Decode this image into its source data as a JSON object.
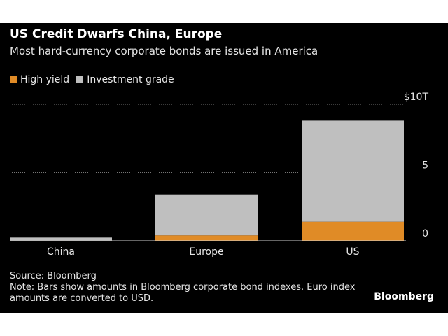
{
  "title": "US Credit Dwarfs China, Europe",
  "subtitle": "Most hard-currency corporate bonds are issued in America",
  "source": "Source: Bloomberg",
  "note": "Note: Bars show amounts in Bloomberg corporate bond indexes. Euro index amounts are converted to USD.",
  "logo": "Bloomberg",
  "chart_data": {
    "type": "bar",
    "stacked": true,
    "categories": [
      "China",
      "Europe",
      "US"
    ],
    "series": [
      {
        "name": "High yield",
        "values": [
          0.03,
          0.4,
          1.4
        ],
        "color": "#e08b26"
      },
      {
        "name": "Investment grade",
        "values": [
          0.21,
          3.0,
          7.4
        ],
        "color": "#bfbfbf"
      }
    ],
    "yticks": [
      {
        "v": 0,
        "label": "0"
      },
      {
        "v": 5,
        "label": "5"
      },
      {
        "v": 10,
        "label": "$10T"
      }
    ],
    "ylim": [
      0,
      10
    ],
    "grid": true,
    "legend": "top-left"
  }
}
